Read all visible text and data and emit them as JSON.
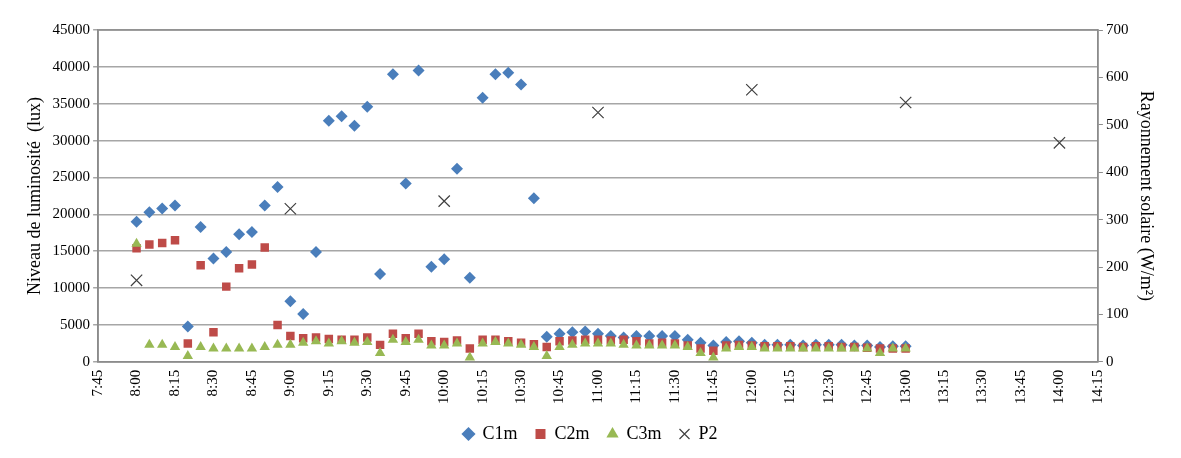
{
  "chart_data": {
    "type": "scatter",
    "ylabel": "Niveau de luminosité  (lux)",
    "y2label": "Rayonnement solaire (W/m²)",
    "x": [
      8,
      8.0833,
      8.1667,
      8.25,
      8.3333,
      8.4167,
      8.5,
      8.5833,
      8.6667,
      8.75,
      8.8333,
      8.9167,
      9,
      9.0833,
      9.1667,
      9.25,
      9.3333,
      9.4167,
      9.5,
      9.5833,
      9.6667,
      9.75,
      9.8333,
      9.9167,
      10,
      10.0833,
      10.1667,
      10.25,
      10.3333,
      10.4167,
      10.5,
      10.5833,
      10.6667,
      10.75,
      10.8333,
      10.9167,
      11,
      11.0833,
      11.1667,
      11.25,
      11.3333,
      11.4167,
      11.5,
      11.5833,
      11.6667,
      11.75,
      11.8333,
      11.9167,
      12,
      12.0833,
      12.1667,
      12.25,
      12.3333,
      12.4167,
      12.5,
      12.5833,
      12.6667,
      12.75,
      12.8333,
      12.9167,
      13
    ],
    "series": [
      {
        "name": "C1m",
        "color": "#4a7ebb",
        "marker": "diamond",
        "values": [
          19000,
          20300,
          20800,
          21200,
          4800,
          18300,
          14000,
          14900,
          17300,
          17600,
          21200,
          23700,
          8200,
          6500,
          14900,
          32700,
          33300,
          32000,
          34600,
          11900,
          39000,
          24200,
          39500,
          12900,
          13900,
          26200,
          11400,
          35800,
          39000,
          39200,
          37600,
          22200,
          3400,
          3800,
          4000,
          4100,
          3800,
          3500,
          3300,
          3500,
          3500,
          3500,
          3500,
          3000,
          2600,
          2200,
          2700,
          2800,
          2600,
          2300,
          2300,
          2300,
          2200,
          2300,
          2300,
          2300,
          2200,
          2200,
          2000,
          2100,
          2100
        ]
      },
      {
        "name": "C2m",
        "color": "#be4b48",
        "marker": "square",
        "values": [
          15400,
          15900,
          16100,
          16500,
          2500,
          13100,
          4000,
          10200,
          12700,
          13200,
          15500,
          5000,
          3500,
          3200,
          3300,
          3100,
          3000,
          3000,
          3300,
          2300,
          3800,
          3200,
          3800,
          2800,
          2700,
          2900,
          1800,
          3000,
          3000,
          2800,
          2600,
          2400,
          2000,
          2800,
          2900,
          3000,
          3000,
          2900,
          3000,
          2800,
          2500,
          2600,
          2500,
          2200,
          1800,
          1500,
          2200,
          2300,
          2200,
          2100,
          2100,
          2100,
          2000,
          2100,
          2100,
          2000,
          2000,
          1900,
          1800,
          1800,
          1800
        ]
      },
      {
        "name": "C3m",
        "color": "#98b954",
        "marker": "triangle",
        "values": [
          16000,
          2300,
          2300,
          2000,
          800,
          2000,
          1800,
          1800,
          1800,
          1800,
          2000,
          2300,
          2300,
          2600,
          2800,
          2500,
          2800,
          2600,
          2700,
          1200,
          3000,
          2700,
          3000,
          2200,
          2200,
          2500,
          600,
          2500,
          2700,
          2500,
          2300,
          2000,
          800,
          2000,
          2300,
          2500,
          2500,
          2500,
          2300,
          2200,
          2200,
          2200,
          2200,
          2000,
          1200,
          600,
          1800,
          2000,
          2000,
          1800,
          1800,
          1800,
          1800,
          1800,
          1800,
          1800,
          1800,
          1800,
          1200,
          1800,
          1800
        ]
      },
      {
        "name": "P2",
        "color": "#404040",
        "marker": "cross",
        "axis": "y2",
        "x": [
          8,
          9,
          10,
          11,
          12,
          13,
          14
        ],
        "values": [
          172,
          323,
          339,
          526,
          574,
          547,
          462
        ]
      }
    ],
    "xlim": [
      7.75,
      14.25
    ],
    "xticks": [
      {
        "value": 7.75,
        "label": "7:45"
      },
      {
        "value": 8,
        "label": "8:00"
      },
      {
        "value": 8.25,
        "label": "8:15"
      },
      {
        "value": 8.5,
        "label": "8:30"
      },
      {
        "value": 8.75,
        "label": "8:45"
      },
      {
        "value": 9,
        "label": "9:00"
      },
      {
        "value": 9.25,
        "label": "9:15"
      },
      {
        "value": 9.5,
        "label": "9:30"
      },
      {
        "value": 9.75,
        "label": "9:45"
      },
      {
        "value": 10,
        "label": "10:00"
      },
      {
        "value": 10.25,
        "label": "10:15"
      },
      {
        "value": 10.5,
        "label": "10:30"
      },
      {
        "value": 10.75,
        "label": "10:45"
      },
      {
        "value": 11,
        "label": "11:00"
      },
      {
        "value": 11.25,
        "label": "11:15"
      },
      {
        "value": 11.5,
        "label": "11:30"
      },
      {
        "value": 11.75,
        "label": "11:45"
      },
      {
        "value": 12,
        "label": "12:00"
      },
      {
        "value": 12.25,
        "label": "12:15"
      },
      {
        "value": 12.5,
        "label": "12:30"
      },
      {
        "value": 12.75,
        "label": "12:45"
      },
      {
        "value": 13,
        "label": "13:00"
      },
      {
        "value": 13.25,
        "label": "13:15"
      },
      {
        "value": 13.5,
        "label": "13:30"
      },
      {
        "value": 13.75,
        "label": "13:45"
      },
      {
        "value": 14,
        "label": "14:00"
      },
      {
        "value": 14.25,
        "label": "14:15"
      }
    ],
    "ylim": [
      0,
      45000
    ],
    "yticks": [
      0,
      5000,
      10000,
      15000,
      20000,
      25000,
      30000,
      35000,
      40000,
      45000
    ],
    "y2lim": [
      0,
      700
    ],
    "y2ticks": [
      0,
      100,
      200,
      300,
      400,
      500,
      600,
      700
    ],
    "grid": "y",
    "legend": "bottom"
  }
}
